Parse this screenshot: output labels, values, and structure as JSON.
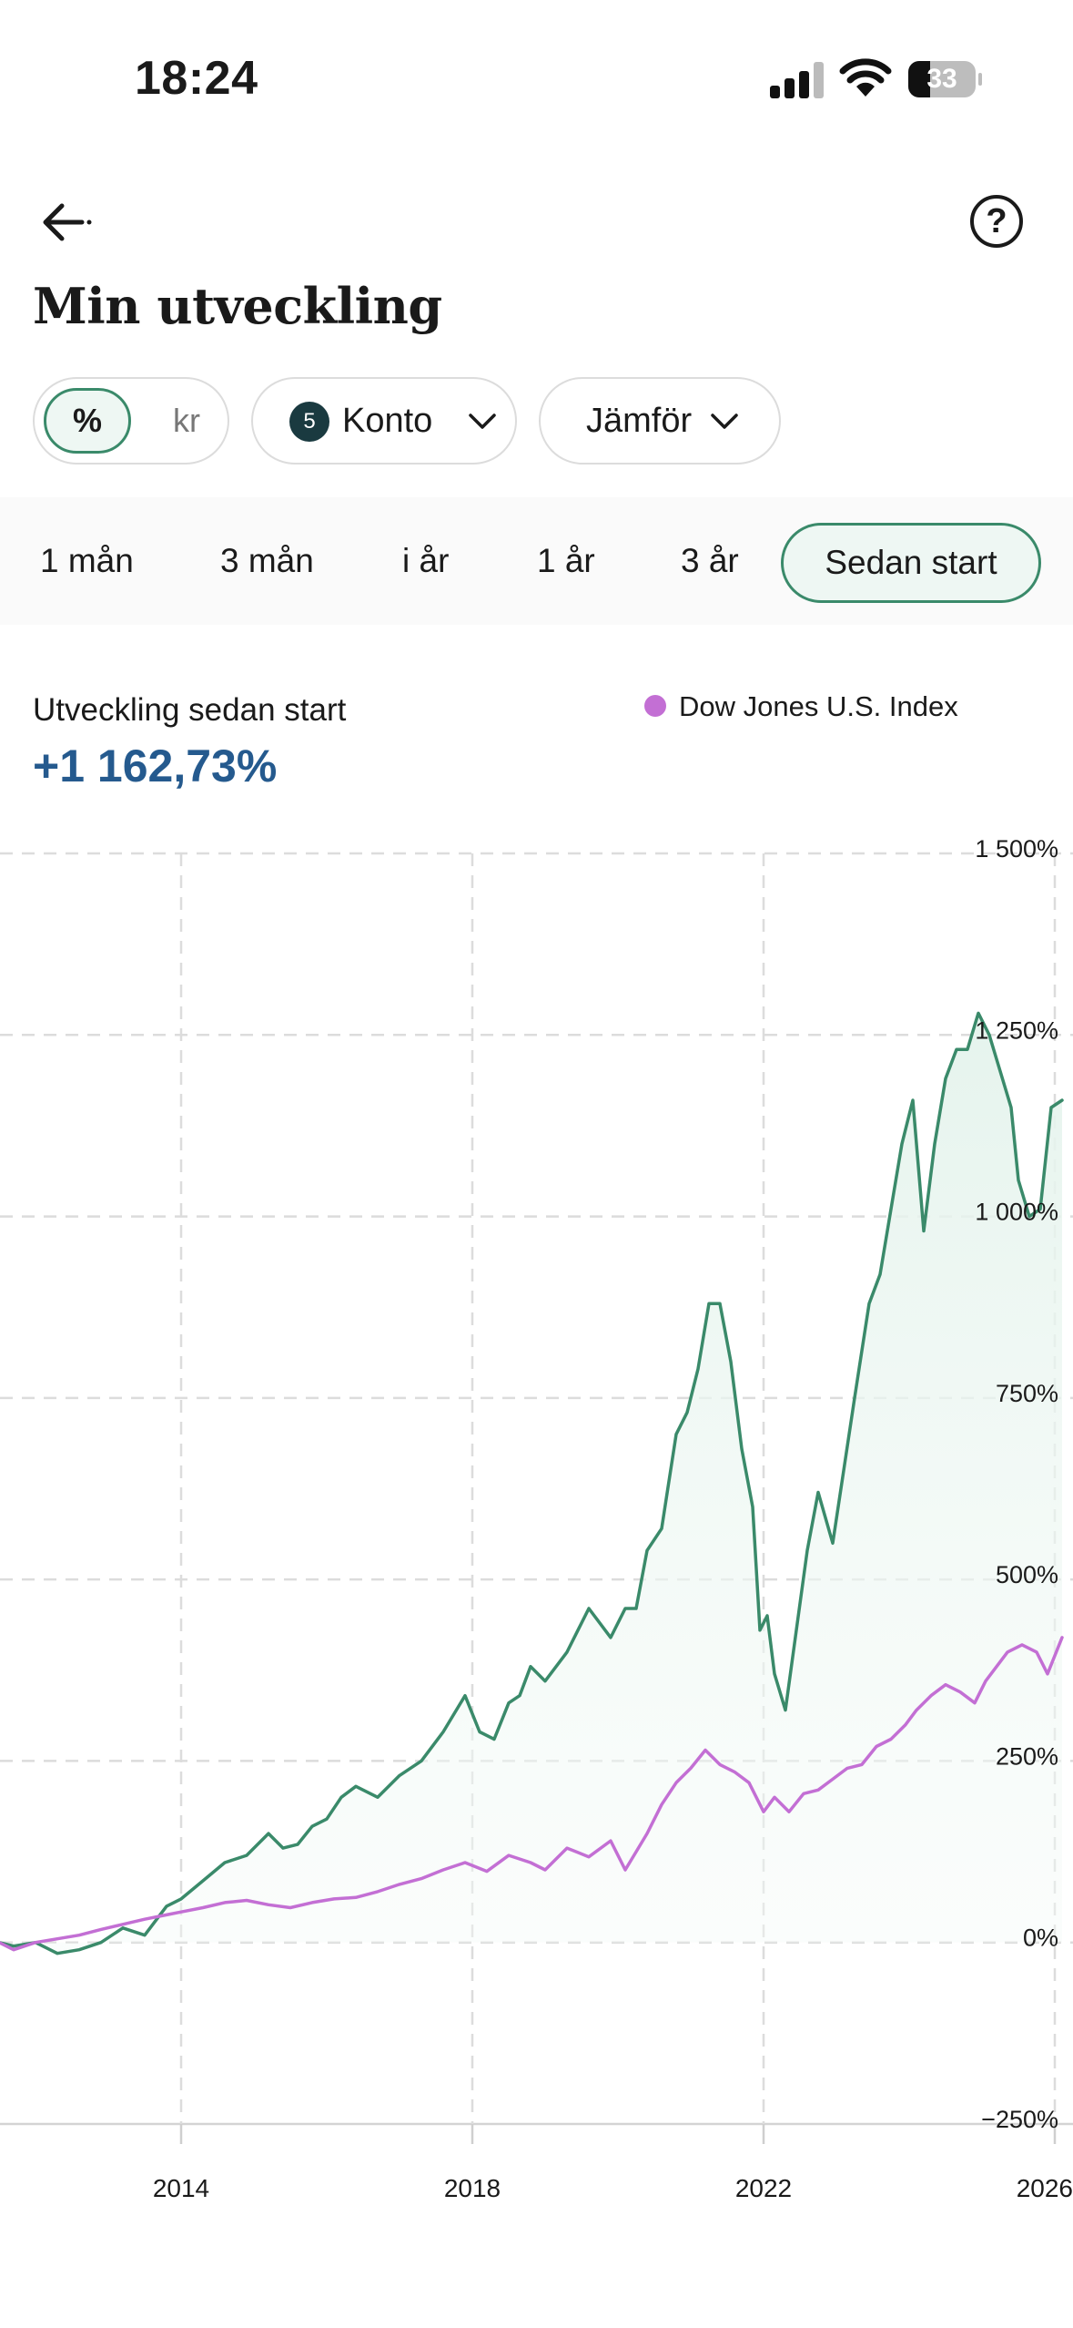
{
  "status_bar": {
    "time": "18:24",
    "battery": "33"
  },
  "header": {
    "title": "Min utveckling",
    "back_icon": "arrow-left-icon",
    "help_icon": "question-circle-icon"
  },
  "filters": {
    "unit_percent": "%",
    "unit_kr": "kr",
    "account_count": "5",
    "account_label": "Konto",
    "compare_label": "Jämför"
  },
  "periods": [
    {
      "label": "1 mån"
    },
    {
      "label": "3 mån"
    },
    {
      "label": "i år"
    },
    {
      "label": "1 år"
    },
    {
      "label": "3 år"
    },
    {
      "label": "Sedan start",
      "active": true
    }
  ],
  "summary": {
    "label": "Utveckling sedan start",
    "value": "+1 162,73%"
  },
  "colors": {
    "portfolio": "#3a8a6a",
    "index": "#c36fd4",
    "accent": "#255a8e"
  },
  "chart_data": {
    "type": "line",
    "ylim": [
      -250,
      1500
    ],
    "xlim": [
      2011.5,
      2026.1
    ],
    "y_ticks": [
      -250,
      0,
      250,
      500,
      750,
      1000,
      1250,
      1500
    ],
    "y_tick_labels": [
      "−250%",
      "0%",
      "250%",
      "500%",
      "750%",
      "1 000%",
      "1 250%",
      "1 500%"
    ],
    "x_ticks": [
      2014,
      2018,
      2022,
      2026
    ],
    "x_tick_labels": [
      "2014",
      "2018",
      "2022",
      "2026"
    ],
    "grid": true,
    "legend": "top-right",
    "series": [
      {
        "name": "",
        "color": "#3a8a6a",
        "area": true,
        "x": [
          2011.5,
          2011.7,
          2012.0,
          2012.3,
          2012.6,
          2012.9,
          2013.2,
          2013.5,
          2013.8,
          2014.0,
          2014.3,
          2014.6,
          2014.9,
          2015.2,
          2015.4,
          2015.6,
          2015.8,
          2016.0,
          2016.2,
          2016.4,
          2016.7,
          2017.0,
          2017.3,
          2017.6,
          2017.9,
          2018.1,
          2018.3,
          2018.5,
          2018.65,
          2018.8,
          2019.0,
          2019.3,
          2019.6,
          2019.9,
          2020.1,
          2020.25,
          2020.4,
          2020.6,
          2020.8,
          2020.95,
          2021.1,
          2021.25,
          2021.4,
          2021.55,
          2021.7,
          2021.85,
          2021.95,
          2022.05,
          2022.15,
          2022.3,
          2022.45,
          2022.6,
          2022.75,
          2022.95,
          2023.1,
          2023.25,
          2023.45,
          2023.6,
          2023.75,
          2023.9,
          2024.05,
          2024.2,
          2024.35,
          2024.5,
          2024.65,
          2024.8,
          2024.95,
          2025.1,
          2025.25,
          2025.4,
          2025.5,
          2025.65,
          2025.8,
          2025.95,
          2026.1
        ],
        "y": [
          0,
          -5,
          0,
          -15,
          -10,
          0,
          20,
          10,
          50,
          60,
          85,
          110,
          120,
          150,
          130,
          135,
          160,
          170,
          200,
          215,
          200,
          230,
          250,
          290,
          340,
          290,
          280,
          330,
          340,
          380,
          360,
          400,
          460,
          420,
          460,
          460,
          540,
          570,
          700,
          730,
          790,
          880,
          880,
          800,
          680,
          600,
          430,
          450,
          370,
          320,
          430,
          540,
          620,
          550,
          650,
          750,
          880,
          920,
          1010,
          1100,
          1160,
          980,
          1100,
          1190,
          1230,
          1230,
          1280,
          1250,
          1200,
          1150,
          1050,
          1000,
          1010,
          1150,
          1160
        ]
      },
      {
        "name": "Dow Jones U.S. Index",
        "color": "#c36fd4",
        "area": false,
        "x": [
          2011.5,
          2011.7,
          2012.0,
          2012.3,
          2012.6,
          2012.9,
          2013.2,
          2013.5,
          2013.8,
          2014.0,
          2014.3,
          2014.6,
          2014.9,
          2015.2,
          2015.5,
          2015.8,
          2016.1,
          2016.4,
          2016.7,
          2017.0,
          2017.3,
          2017.6,
          2017.9,
          2018.2,
          2018.5,
          2018.8,
          2019.0,
          2019.3,
          2019.6,
          2019.9,
          2020.1,
          2020.25,
          2020.4,
          2020.6,
          2020.8,
          2021.0,
          2021.2,
          2021.4,
          2021.6,
          2021.8,
          2022.0,
          2022.15,
          2022.35,
          2022.55,
          2022.75,
          2022.95,
          2023.15,
          2023.35,
          2023.55,
          2023.75,
          2023.95,
          2024.1,
          2024.3,
          2024.5,
          2024.7,
          2024.9,
          2025.05,
          2025.2,
          2025.35,
          2025.55,
          2025.75,
          2025.9,
          2026.1
        ],
        "y": [
          0,
          -10,
          0,
          5,
          10,
          18,
          25,
          32,
          38,
          42,
          48,
          55,
          58,
          52,
          48,
          55,
          60,
          62,
          70,
          80,
          88,
          100,
          110,
          98,
          120,
          110,
          100,
          130,
          118,
          140,
          100,
          125,
          150,
          190,
          220,
          240,
          265,
          245,
          235,
          220,
          180,
          200,
          180,
          205,
          210,
          225,
          240,
          245,
          270,
          280,
          300,
          320,
          340,
          355,
          345,
          330,
          360,
          380,
          400,
          410,
          400,
          370,
          420
        ]
      }
    ]
  }
}
